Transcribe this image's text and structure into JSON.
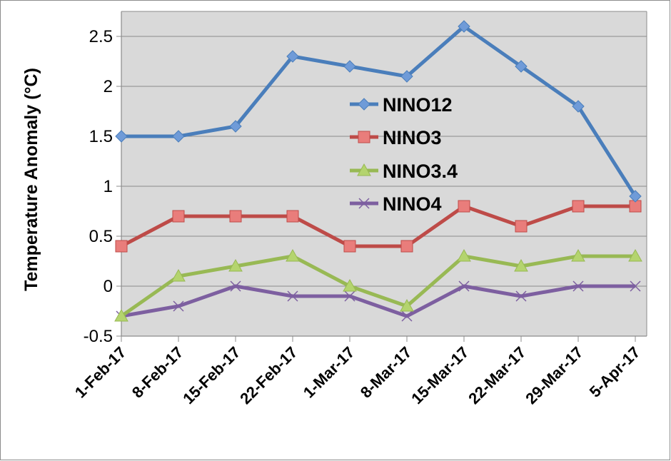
{
  "chart_data": {
    "type": "line",
    "title": "",
    "xlabel": "",
    "ylabel": "Temperature Anomaly (°C)",
    "categories": [
      "1-Feb-17",
      "8-Feb-17",
      "15-Feb-17",
      "22-Feb-17",
      "1-Mar-17",
      "8-Mar-17",
      "15-Mar-17",
      "22-Mar-17",
      "29-Mar-17",
      "5-Apr-17"
    ],
    "ylim": [
      -0.5,
      2.75
    ],
    "yticks": [
      "-0.5",
      "0",
      "0.5",
      "1",
      "1.5",
      "2",
      "2.5"
    ],
    "grid": true,
    "legend_position": "center",
    "series": [
      {
        "name": "NINO12",
        "color": "#4a7ebb",
        "marker_color": "#6f9bd8",
        "marker": "diamond",
        "values": [
          1.5,
          1.5,
          1.6,
          2.3,
          2.2,
          2.1,
          2.6,
          2.2,
          1.8,
          0.9
        ]
      },
      {
        "name": "NINO3",
        "color": "#be4b48",
        "marker_color": "#e97d7b",
        "marker": "square",
        "values": [
          0.4,
          0.7,
          0.7,
          0.7,
          0.4,
          0.4,
          0.8,
          0.6,
          0.8,
          0.8
        ]
      },
      {
        "name": "NINO3.4",
        "color": "#98b954",
        "marker_color": "#b4d46e",
        "marker": "triangle",
        "values": [
          -0.3,
          0.1,
          0.2,
          0.3,
          0.0,
          -0.2,
          0.3,
          0.2,
          0.3,
          0.3
        ]
      },
      {
        "name": "NINO4",
        "color": "#7d5fa0",
        "marker_color": "#7d5fa0",
        "marker": "x",
        "values": [
          -0.3,
          -0.2,
          0.0,
          -0.1,
          -0.1,
          -0.3,
          0.0,
          -0.1,
          0.0,
          0.0
        ]
      }
    ]
  }
}
